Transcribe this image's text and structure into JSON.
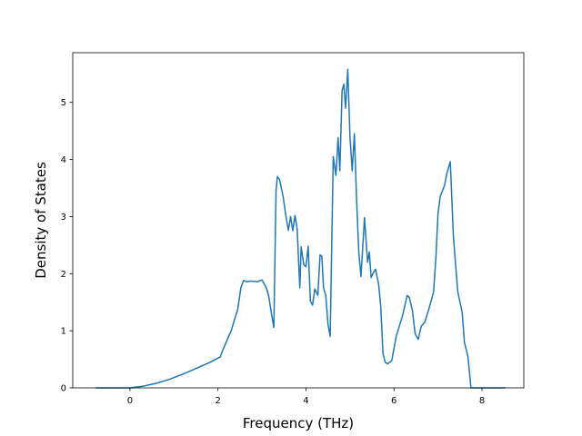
{
  "chart_data": {
    "type": "line",
    "title": "",
    "xlabel": "Frequency (THz)",
    "ylabel": "Density of States",
    "xlim": [
      -1.3,
      8.95
    ],
    "ylim": [
      0,
      5.87
    ],
    "xticks": [
      0,
      2,
      4,
      6,
      8
    ],
    "yticks": [
      0,
      1,
      2,
      3,
      4,
      5
    ],
    "grid": false,
    "legend": "none",
    "line_color": "#1f77b4",
    "series": [
      {
        "x": [
          -0.78,
          0.0,
          0.3,
          0.6,
          0.9,
          1.2,
          1.5,
          1.8,
          2.05,
          2.12,
          2.3,
          2.45,
          2.52,
          2.58,
          2.65,
          2.75,
          2.9,
          3.0,
          3.1,
          3.15,
          3.22,
          3.27,
          3.32,
          3.35,
          3.4,
          3.48,
          3.55,
          3.6,
          3.65,
          3.7,
          3.75,
          3.8,
          3.86,
          3.89,
          3.95,
          4.0,
          4.05,
          4.1,
          4.15,
          4.2,
          4.27,
          4.32,
          4.36,
          4.4,
          4.45,
          4.5,
          4.55,
          4.62,
          4.68,
          4.73,
          4.77,
          4.82,
          4.86,
          4.9,
          4.95,
          5.0,
          5.05,
          5.1,
          5.15,
          5.2,
          5.25,
          5.33,
          5.4,
          5.44,
          5.48,
          5.52,
          5.58,
          5.65,
          5.7,
          5.75,
          5.8,
          5.86,
          5.95,
          6.05,
          6.2,
          6.3,
          6.35,
          6.42,
          6.48,
          6.55,
          6.62,
          6.7,
          6.8,
          6.9,
          6.95,
          7.0,
          7.05,
          7.15,
          7.2,
          7.28,
          7.35,
          7.45,
          7.55,
          7.6,
          7.68,
          7.75,
          8.0,
          8.53
        ],
        "values": [
          0.0,
          0.0,
          0.03,
          0.08,
          0.15,
          0.24,
          0.34,
          0.44,
          0.54,
          0.68,
          1.0,
          1.38,
          1.75,
          1.88,
          1.86,
          1.87,
          1.86,
          1.89,
          1.75,
          1.62,
          1.28,
          1.06,
          3.45,
          3.7,
          3.65,
          3.35,
          2.98,
          2.76,
          3.0,
          2.75,
          3.02,
          2.78,
          1.75,
          2.47,
          2.16,
          2.12,
          2.48,
          1.52,
          1.45,
          1.73,
          1.62,
          2.33,
          2.3,
          1.75,
          1.62,
          1.12,
          0.9,
          4.05,
          3.72,
          4.38,
          3.8,
          5.2,
          5.32,
          4.9,
          5.58,
          4.4,
          3.8,
          4.45,
          3.3,
          2.38,
          1.95,
          2.98,
          2.2,
          2.38,
          1.93,
          2.0,
          2.08,
          1.82,
          1.42,
          0.6,
          0.45,
          0.42,
          0.48,
          0.9,
          1.28,
          1.62,
          1.58,
          1.35,
          0.95,
          0.85,
          1.08,
          1.15,
          1.4,
          1.68,
          2.25,
          3.05,
          3.35,
          3.55,
          3.75,
          3.96,
          2.65,
          1.68,
          1.32,
          0.8,
          0.55,
          0.0,
          0.0,
          0.0
        ]
      }
    ]
  }
}
